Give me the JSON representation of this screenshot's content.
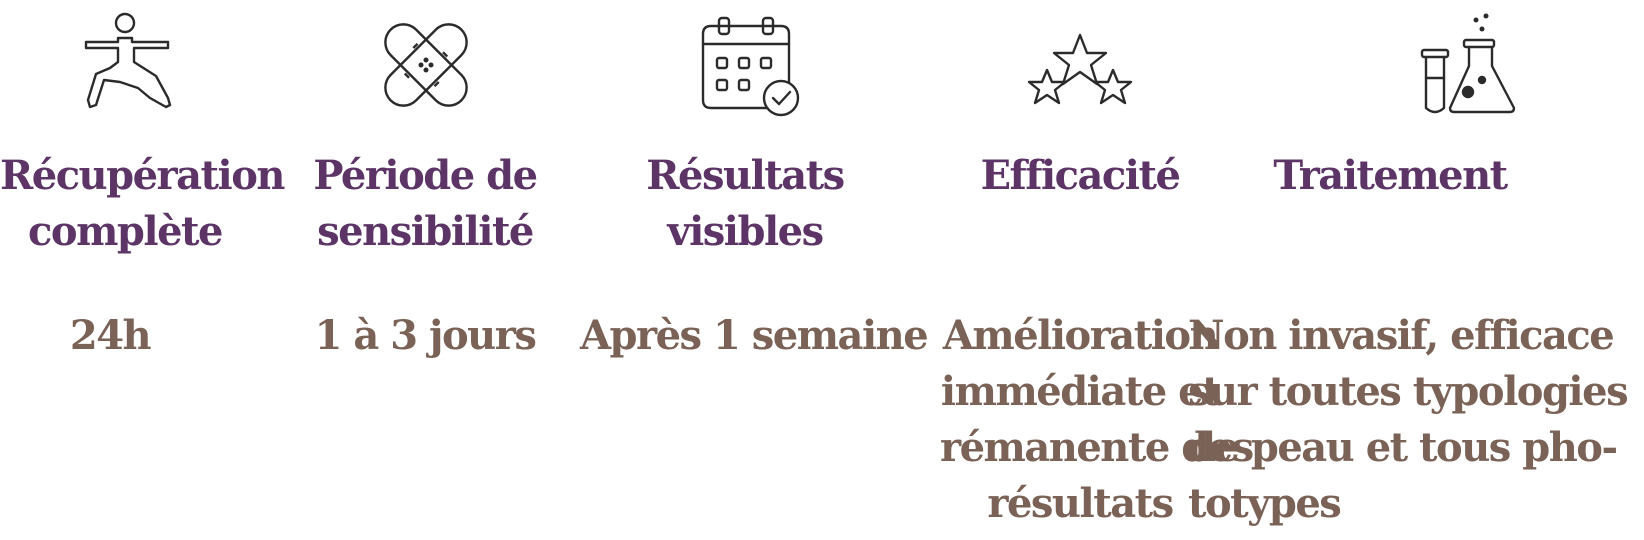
{
  "colors": {
    "title": "#5c3566",
    "value": "#7a6256",
    "icon": "#2b2b2b"
  },
  "features": [
    {
      "icon": "yoga-pose-icon",
      "title_lines": [
        "Récupération",
        "complète"
      ],
      "value_lines": [
        "24h"
      ]
    },
    {
      "icon": "bandage-icon",
      "title_lines": [
        "Période de",
        "sensibilité"
      ],
      "value_lines": [
        "1 à 3 jours"
      ]
    },
    {
      "icon": "calendar-check-icon",
      "title_lines": [
        "Résultats",
        "visibles"
      ],
      "value_lines": [
        "Après 1 semaine"
      ]
    },
    {
      "icon": "three-stars-icon",
      "title_lines": [
        "Efficacité"
      ],
      "value_lines": [
        "Amélioration",
        "immédiate et",
        "rémanente des",
        "résultats"
      ]
    },
    {
      "icon": "lab-flask-icon",
      "title_lines": [
        "Traitement"
      ],
      "value_lines": [
        "Non invasif, efficace",
        "sur toutes typologies",
        "de peau et tous pho-",
        "totypes"
      ]
    }
  ]
}
